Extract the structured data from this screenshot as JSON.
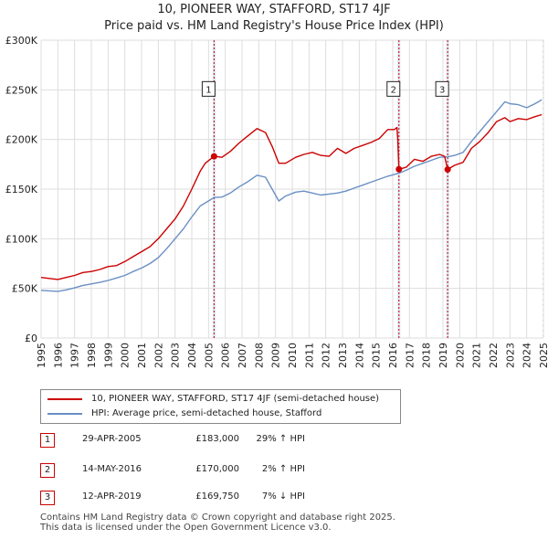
{
  "header": {
    "title_line1": "10, PIONEER WAY, STAFFORD, ST17 4JF",
    "title_line2": "Price paid vs. HM Land Registry's House Price Index (HPI)"
  },
  "colors": {
    "property": "#cc0000",
    "hpi": "#6a8fc4",
    "grid": "#dddddd",
    "band": "#dde6f5"
  },
  "chart_data": {
    "type": "line",
    "title": "Price paid vs. HM Land Registry's House Price Index (HPI)",
    "xlim": [
      1995,
      2025
    ],
    "ylim": [
      0,
      300000
    ],
    "yticks": [
      0,
      50000,
      100000,
      150000,
      200000,
      250000,
      300000
    ],
    "ytick_labels": [
      "£0",
      "£50K",
      "£100K",
      "£150K",
      "£200K",
      "£250K",
      "£300K"
    ],
    "xticks": [
      "1995",
      "1996",
      "1997",
      "1998",
      "1999",
      "2000",
      "2001",
      "2002",
      "2003",
      "2004",
      "2005",
      "2006",
      "2007",
      "2008",
      "2009",
      "2010",
      "2011",
      "2012",
      "2013",
      "2014",
      "2015",
      "2016",
      "2017",
      "2018",
      "2019",
      "2020",
      "2021",
      "2022",
      "2023",
      "2024",
      "2025"
    ],
    "hatch_from": 2025.0,
    "series": [
      {
        "name": "10, PIONEER WAY, STAFFORD, ST17 4JF (semi-detached house)",
        "color": "#cc0000",
        "points": [
          [
            1995.0,
            61000
          ],
          [
            1995.5,
            60000
          ],
          [
            1996.0,
            59000
          ],
          [
            1996.5,
            61000
          ],
          [
            1997.0,
            63000
          ],
          [
            1997.5,
            66000
          ],
          [
            1998.0,
            67000
          ],
          [
            1998.5,
            69000
          ],
          [
            1999.0,
            72000
          ],
          [
            1999.5,
            73000
          ],
          [
            2000.0,
            77000
          ],
          [
            2000.5,
            82000
          ],
          [
            2001.0,
            87000
          ],
          [
            2001.5,
            92000
          ],
          [
            2002.0,
            100000
          ],
          [
            2002.5,
            110000
          ],
          [
            2003.0,
            120000
          ],
          [
            2003.5,
            133000
          ],
          [
            2004.0,
            150000
          ],
          [
            2004.5,
            168000
          ],
          [
            2004.8,
            176000
          ],
          [
            2005.33,
            183000
          ],
          [
            2005.8,
            182000
          ],
          [
            2006.3,
            188000
          ],
          [
            2006.8,
            196000
          ],
          [
            2007.3,
            203000
          ],
          [
            2007.9,
            211000
          ],
          [
            2008.4,
            207000
          ],
          [
            2008.8,
            193000
          ],
          [
            2009.2,
            176000
          ],
          [
            2009.6,
            176000
          ],
          [
            2010.2,
            182000
          ],
          [
            2010.7,
            185000
          ],
          [
            2011.2,
            187000
          ],
          [
            2011.7,
            184000
          ],
          [
            2012.2,
            183000
          ],
          [
            2012.7,
            191000
          ],
          [
            2013.2,
            186000
          ],
          [
            2013.7,
            191000
          ],
          [
            2014.2,
            194000
          ],
          [
            2014.7,
            197000
          ],
          [
            2015.2,
            201000
          ],
          [
            2015.7,
            210000
          ],
          [
            2016.1,
            210000
          ],
          [
            2016.25,
            212000
          ],
          [
            2016.3,
            200000
          ],
          [
            2016.37,
            170000
          ],
          [
            2016.8,
            172000
          ],
          [
            2017.3,
            180000
          ],
          [
            2017.8,
            178000
          ],
          [
            2018.3,
            183000
          ],
          [
            2018.8,
            185000
          ],
          [
            2019.1,
            183000
          ],
          [
            2019.28,
            169750
          ],
          [
            2019.7,
            174000
          ],
          [
            2020.2,
            177000
          ],
          [
            2020.7,
            191000
          ],
          [
            2021.2,
            198000
          ],
          [
            2021.7,
            207000
          ],
          [
            2022.2,
            218000
          ],
          [
            2022.7,
            222000
          ],
          [
            2023.0,
            218000
          ],
          [
            2023.5,
            221000
          ],
          [
            2024.0,
            220000
          ],
          [
            2024.5,
            223000
          ],
          [
            2024.9,
            225000
          ]
        ]
      },
      {
        "name": "HPI: Average price, semi-detached house, Stafford",
        "color": "#6a8fc4",
        "points": [
          [
            1995.0,
            48000
          ],
          [
            1995.5,
            47500
          ],
          [
            1996.0,
            47000
          ],
          [
            1996.5,
            48500
          ],
          [
            1997.0,
            50500
          ],
          [
            1997.5,
            53000
          ],
          [
            1998.0,
            54500
          ],
          [
            1998.5,
            56000
          ],
          [
            1999.0,
            58000
          ],
          [
            1999.5,
            60500
          ],
          [
            2000.0,
            63000
          ],
          [
            2000.5,
            67000
          ],
          [
            2001.0,
            70500
          ],
          [
            2001.5,
            75000
          ],
          [
            2002.0,
            81000
          ],
          [
            2002.5,
            90000
          ],
          [
            2003.0,
            100000
          ],
          [
            2003.5,
            110000
          ],
          [
            2004.0,
            122000
          ],
          [
            2004.5,
            133000
          ],
          [
            2005.0,
            138000
          ],
          [
            2005.33,
            141500
          ],
          [
            2005.8,
            142000
          ],
          [
            2006.3,
            146000
          ],
          [
            2006.8,
            152000
          ],
          [
            2007.3,
            157000
          ],
          [
            2007.9,
            164000
          ],
          [
            2008.4,
            162000
          ],
          [
            2008.8,
            150000
          ],
          [
            2009.2,
            138000
          ],
          [
            2009.6,
            143000
          ],
          [
            2010.2,
            147000
          ],
          [
            2010.7,
            148000
          ],
          [
            2011.2,
            146000
          ],
          [
            2011.7,
            144000
          ],
          [
            2012.2,
            145000
          ],
          [
            2012.7,
            146000
          ],
          [
            2013.2,
            148000
          ],
          [
            2013.7,
            151000
          ],
          [
            2014.2,
            154000
          ],
          [
            2014.7,
            157000
          ],
          [
            2015.2,
            160000
          ],
          [
            2015.7,
            163000
          ],
          [
            2016.37,
            166000
          ],
          [
            2016.8,
            169000
          ],
          [
            2017.3,
            173000
          ],
          [
            2017.8,
            176000
          ],
          [
            2018.3,
            179000
          ],
          [
            2018.8,
            182000
          ],
          [
            2019.28,
            182500
          ],
          [
            2019.7,
            184000
          ],
          [
            2020.2,
            187000
          ],
          [
            2020.7,
            198000
          ],
          [
            2021.2,
            208000
          ],
          [
            2021.7,
            218000
          ],
          [
            2022.2,
            228000
          ],
          [
            2022.7,
            238000
          ],
          [
            2023.0,
            236000
          ],
          [
            2023.5,
            235000
          ],
          [
            2024.0,
            232000
          ],
          [
            2024.5,
            236000
          ],
          [
            2024.9,
            240000
          ]
        ]
      }
    ],
    "sales": [
      {
        "label": "1",
        "x": 2005.33,
        "value": 183000,
        "date": "29-APR-2005",
        "price": "£183,000",
        "pct": "29% ↑ HPI"
      },
      {
        "label": "2",
        "x": 2016.37,
        "value": 170000,
        "date": "14-MAY-2016",
        "price": "£170,000",
        "pct": "2% ↑ HPI"
      },
      {
        "label": "3",
        "x": 2019.28,
        "value": 169750,
        "date": "12-APR-2019",
        "price": "£169,750",
        "pct": "7% ↓ HPI"
      }
    ],
    "legend": [
      {
        "label": "10, PIONEER WAY, STAFFORD, ST17 4JF (semi-detached house)",
        "color": "#cc0000"
      },
      {
        "label": "HPI: Average price, semi-detached house, Stafford",
        "color": "#6a8fc4"
      }
    ]
  },
  "footer": {
    "line1": "Contains HM Land Registry data © Crown copyright and database right 2025.",
    "line2": "This data is licensed under the Open Government Licence v3.0."
  }
}
